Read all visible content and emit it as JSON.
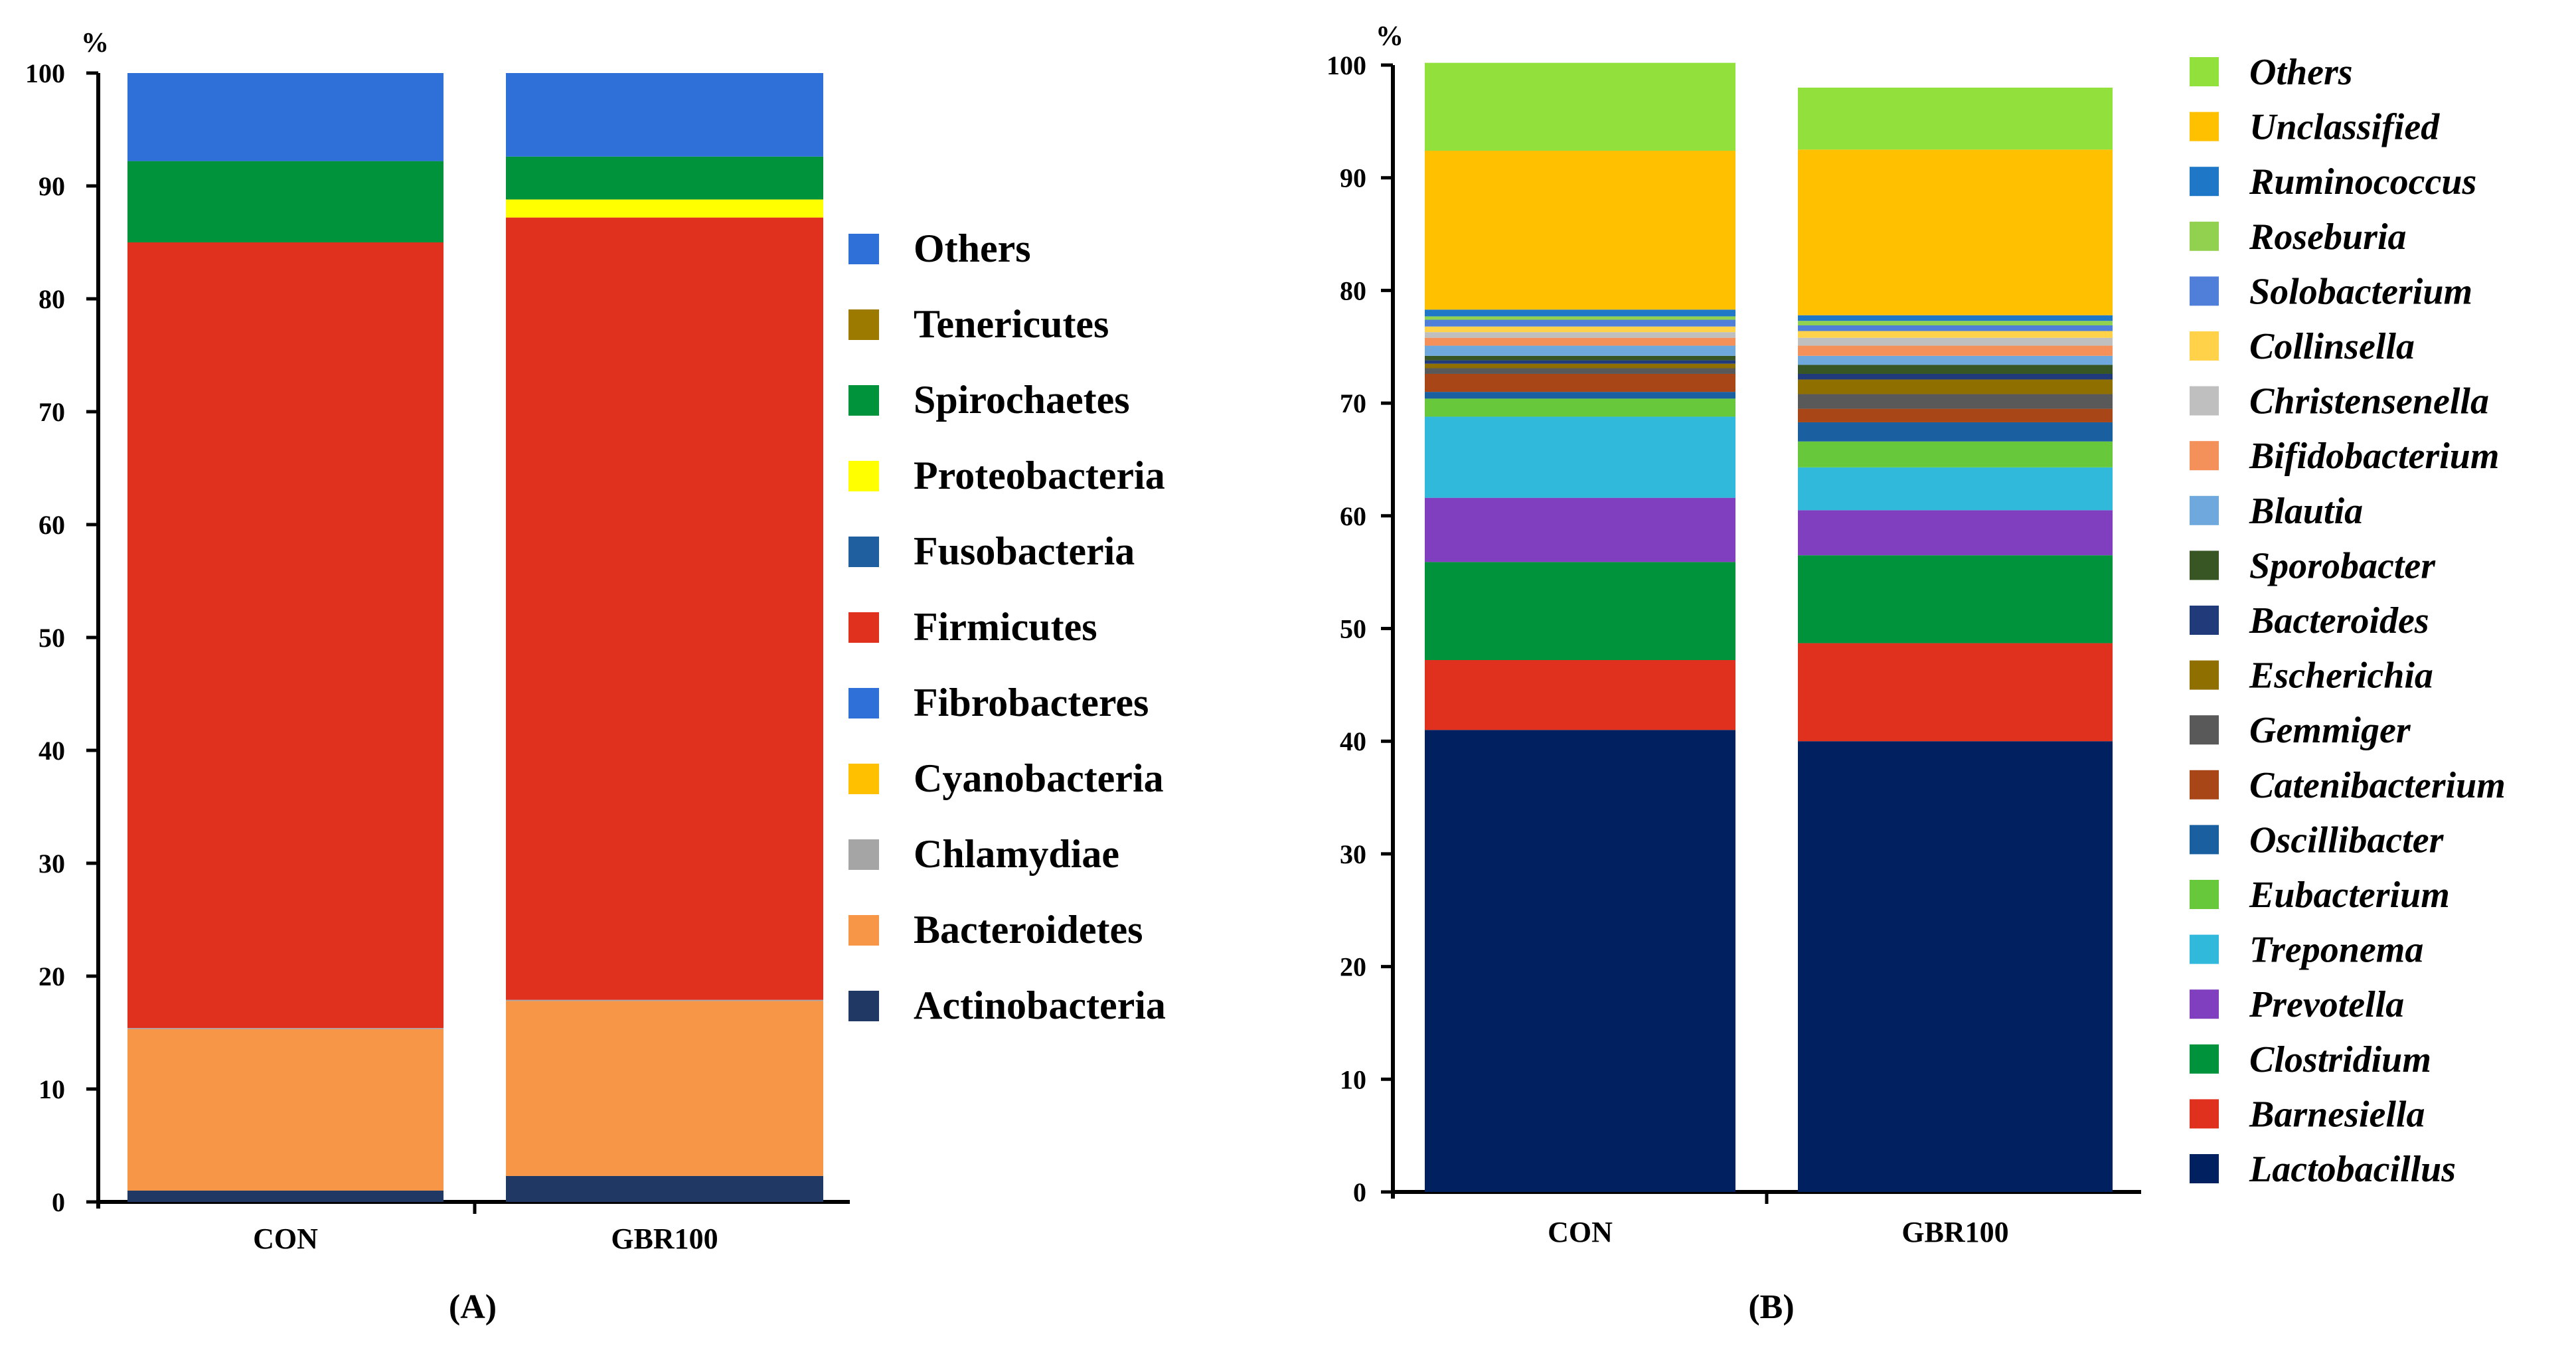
{
  "chart_data": [
    {
      "type": "bar",
      "stacked": true,
      "panel_label": "(A)",
      "ylabel": "%",
      "ylim": [
        0,
        100
      ],
      "yticks": [
        0,
        10,
        20,
        30,
        40,
        50,
        60,
        70,
        80,
        90,
        100
      ],
      "categories": [
        "CON",
        "GBR100"
      ],
      "legend_position": "right",
      "series": [
        {
          "name": "Actinobacteria",
          "color": "#1f3864",
          "values": [
            1.0,
            2.3
          ]
        },
        {
          "name": "Bacteroidetes",
          "color": "#f79646",
          "values": [
            14.3,
            15.5
          ]
        },
        {
          "name": "Chlamydiae",
          "color": "#a5a5a5",
          "values": [
            0.1,
            0.1
          ]
        },
        {
          "name": "Cyanobacteria",
          "color": "#ffc000",
          "values": [
            0.0,
            0.0
          ]
        },
        {
          "name": "Fibrobacteres",
          "color": "#2e6fd8",
          "values": [
            0.0,
            0.0
          ]
        },
        {
          "name": "Firmicutes",
          "color": "#e0301e",
          "values": [
            69.6,
            69.3
          ]
        },
        {
          "name": "Fusobacteria",
          "color": "#1f5fa0",
          "values": [
            0.0,
            0.0
          ]
        },
        {
          "name": "Proteobacteria",
          "color": "#ffff00",
          "values": [
            0.0,
            1.6
          ]
        },
        {
          "name": "Spirochaetes",
          "color": "#00933b",
          "values": [
            7.2,
            3.8
          ]
        },
        {
          "name": "Tenericutes",
          "color": "#9c7a00",
          "values": [
            0.0,
            0.0
          ]
        },
        {
          "name": "Others",
          "color": "#2e6fd8",
          "values": [
            7.8,
            7.4
          ]
        }
      ]
    },
    {
      "type": "bar",
      "stacked": true,
      "panel_label": "(B)",
      "ylabel": "%",
      "ylim": [
        0,
        100
      ],
      "yticks": [
        0,
        10,
        20,
        30,
        40,
        50,
        60,
        70,
        80,
        90,
        100
      ],
      "categories": [
        "CON",
        "GBR100"
      ],
      "legend_position": "right",
      "series": [
        {
          "name": "Lactobacillus",
          "color": "#002060",
          "values": [
            41.0,
            40.0
          ]
        },
        {
          "name": "Barnesiella",
          "color": "#e0301e",
          "values": [
            6.2,
            8.7
          ]
        },
        {
          "name": "Clostridium",
          "color": "#00933b",
          "values": [
            8.7,
            7.8
          ]
        },
        {
          "name": "Prevotella",
          "color": "#7f3fbf",
          "values": [
            5.7,
            4.0
          ]
        },
        {
          "name": "Treponema",
          "color": "#31b9dc",
          "values": [
            7.2,
            3.8
          ]
        },
        {
          "name": "Eubacterium",
          "color": "#66c83a",
          "values": [
            1.6,
            2.3
          ]
        },
        {
          "name": "Oscillibacter",
          "color": "#1a5fa0",
          "values": [
            0.6,
            1.7
          ]
        },
        {
          "name": "Catenibacterium",
          "color": "#a84617",
          "values": [
            1.6,
            1.2
          ]
        },
        {
          "name": "Gemmiger",
          "color": "#595959",
          "values": [
            0.5,
            1.3
          ]
        },
        {
          "name": "Escherichia",
          "color": "#8f6f00",
          "values": [
            0.4,
            1.3
          ]
        },
        {
          "name": "Bacteroides",
          "color": "#203a7a",
          "values": [
            0.3,
            0.5
          ]
        },
        {
          "name": "Sporobacter",
          "color": "#375623",
          "values": [
            0.4,
            0.8
          ]
        },
        {
          "name": "Blautia",
          "color": "#6fa8dc",
          "values": [
            0.9,
            0.8
          ]
        },
        {
          "name": "Bifidobacterium",
          "color": "#f4905a",
          "values": [
            0.7,
            0.9
          ]
        },
        {
          "name": "Christensenella",
          "color": "#bfbfbf",
          "values": [
            0.5,
            0.7
          ]
        },
        {
          "name": "Collinsella",
          "color": "#ffd24a",
          "values": [
            0.5,
            0.6
          ]
        },
        {
          "name": "Solobacterium",
          "color": "#4f7fd8",
          "values": [
            0.6,
            0.5
          ]
        },
        {
          "name": "Roseburia",
          "color": "#92d050",
          "values": [
            0.3,
            0.4
          ]
        },
        {
          "name": "Ruminococcus",
          "color": "#1f77c8",
          "values": [
            0.6,
            0.5
          ]
        },
        {
          "name": "Unclassified",
          "color": "#ffc000",
          "values": [
            14.1,
            14.7
          ]
        },
        {
          "name": "Others",
          "color": "#92e03c",
          "values": [
            7.8,
            5.5
          ]
        }
      ]
    }
  ]
}
